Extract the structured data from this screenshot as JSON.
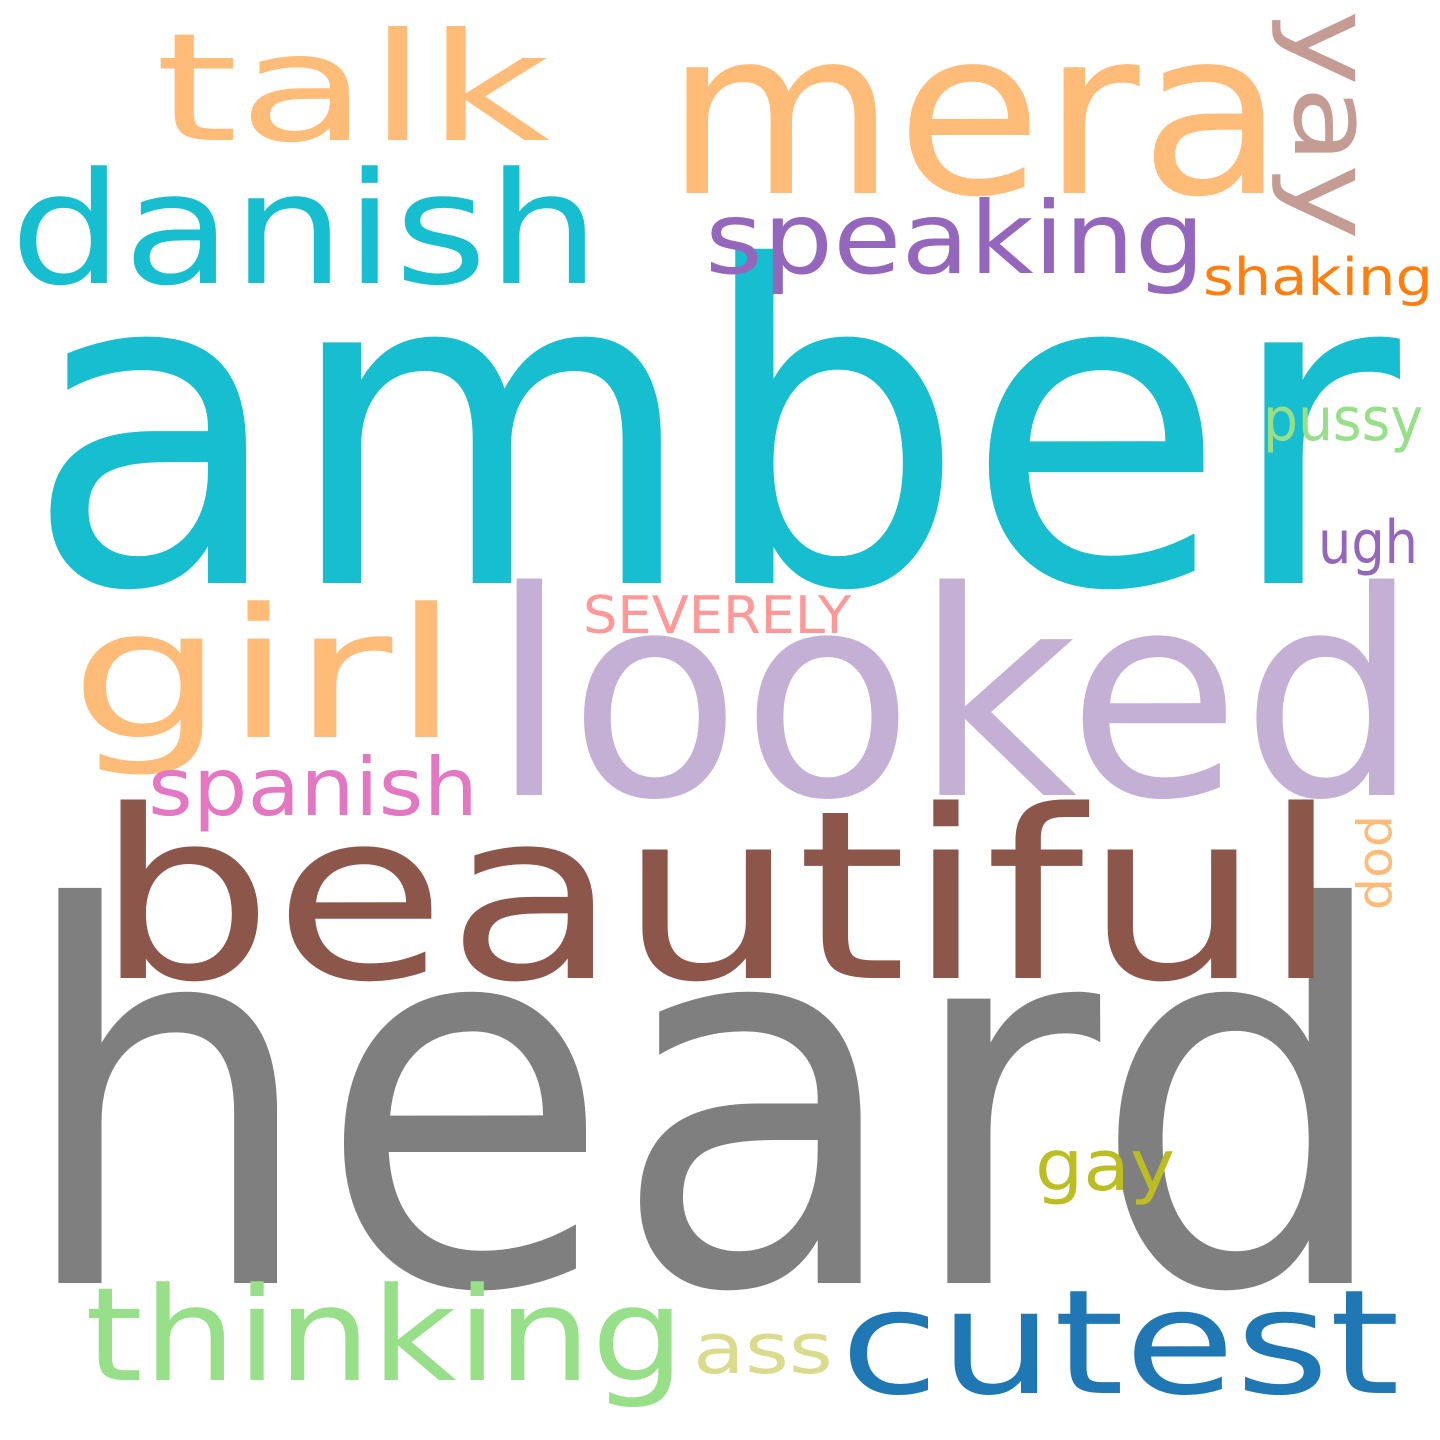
{
  "words": [
    {
      "text": "heard",
      "color": "#7f7f7f"
    },
    {
      "text": "amber",
      "color": "#17becf"
    },
    {
      "text": "looked",
      "color": "#c5b0d5"
    },
    {
      "text": "beautiful",
      "color": "#8c564b"
    },
    {
      "text": "mera",
      "color": "#ffbb78"
    },
    {
      "text": "talk",
      "color": "#ffbb78"
    },
    {
      "text": "danish",
      "color": "#17becf"
    },
    {
      "text": "girl",
      "color": "#ffbb78"
    },
    {
      "text": "cutest",
      "color": "#1f77b4"
    },
    {
      "text": "thinking",
      "color": "#98df8a"
    },
    {
      "text": "speaking",
      "color": "#9467bd"
    },
    {
      "text": "yay",
      "color": "#c49c94"
    },
    {
      "text": "spanish",
      "color": "#e377c2"
    },
    {
      "text": "shaking",
      "color": "#ff7f0e"
    },
    {
      "text": "gay",
      "color": "#bcbd22"
    },
    {
      "text": "pussy",
      "color": "#98df8a"
    },
    {
      "text": "ugh",
      "color": "#9467bd"
    },
    {
      "text": "SEVERELY",
      "color": "#ff9896"
    },
    {
      "text": "ass",
      "color": "#dbdb8d"
    },
    {
      "text": "pop",
      "color": "#ffbb78"
    }
  ]
}
